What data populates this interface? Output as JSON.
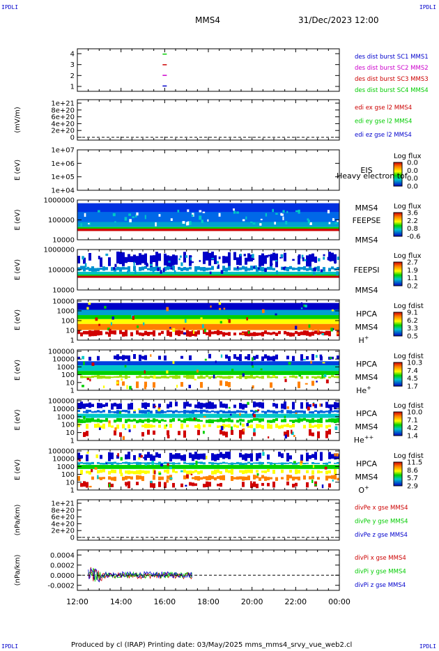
{
  "corner_label": "IPDLI",
  "header": {
    "spacecraft": "MMS4",
    "datetime": "31/Dec/2023 12:00"
  },
  "footer": "Produced by cl (IRAP)   Printing date: 03/May/2025   mms_mms4_srvy_vue_web2.cl",
  "chart_data": [
    {
      "type": "line",
      "panel": "burst",
      "yticks": [
        "1",
        "2",
        "3",
        "4"
      ],
      "ylim": [
        0.5,
        4.5
      ],
      "marks": [
        {
          "x": "16:00",
          "y": 4,
          "color": "#00cc00"
        },
        {
          "x": "16:00",
          "y": 3,
          "color": "#cc0000"
        },
        {
          "x": "16:00",
          "y": 2,
          "color": "#cc00cc"
        },
        {
          "x": "16:00",
          "y": 1,
          "color": "#0000cc"
        }
      ],
      "legend": [
        {
          "text": "des dist burst SC1 MMS1",
          "color": "#0000cc"
        },
        {
          "text": "des dist burst SC2 MMS2",
          "color": "#cc00cc"
        },
        {
          "text": "des dist burst SC3 MMS3",
          "color": "#cc0000"
        },
        {
          "text": "des dist burst SC4 MMS4",
          "color": "#00cc00"
        }
      ]
    },
    {
      "type": "line",
      "panel": "edi",
      "ylabel": "(mV/m)",
      "yticks": [
        "0",
        "2e+20",
        "4e+20",
        "6e+20",
        "8e+20",
        "1e+21"
      ],
      "ylim": [
        0,
        1e+21
      ],
      "dashed_zero": true,
      "legend": [
        {
          "text": "edi ex gse l2 MMS4",
          "color": "#cc0000"
        },
        {
          "text": "edi ey gse l2 MMS4",
          "color": "#00cc00"
        },
        {
          "text": "edi ez gse l2 MMS4",
          "color": "#0000cc"
        }
      ]
    },
    {
      "type": "heatmap",
      "panel": "eis",
      "ylabel": "E (eV)",
      "yticks": [
        "1e+04",
        "1e+05",
        "1e+06",
        "1e+07"
      ],
      "instrument": [
        "EIS",
        "MMS4"
      ],
      "overlay_text": "Heavy electron tof",
      "colorbar": {
        "title": "Log flux",
        "ticks": [
          "0.0",
          "0.0",
          "0.0",
          "0.0"
        ]
      }
    },
    {
      "type": "heatmap",
      "panel": "feepse",
      "ylabel": "E (eV)",
      "yticks": [
        "10000",
        "100000",
        "1000000"
      ],
      "instrument": [
        "FEEPSE",
        "MMS4"
      ],
      "colorbar": {
        "title": "Log flux",
        "ticks": [
          "3.6",
          "2.2",
          "0.8",
          "-0.6"
        ]
      }
    },
    {
      "type": "heatmap",
      "panel": "feepsi",
      "ylabel": "E (eV)",
      "yticks": [
        "10000",
        "100000",
        "1000000"
      ],
      "instrument": [
        "FEEPSI",
        "MMS4"
      ],
      "colorbar": {
        "title": "Log flux",
        "ticks": [
          "2.7",
          "1.9",
          "1.1",
          "0.2"
        ]
      }
    },
    {
      "type": "heatmap",
      "panel": "hpca_h",
      "ylabel": "E (eV)",
      "yticks": [
        "1",
        "10",
        "100",
        "1000",
        "10000"
      ],
      "instrument": [
        "HPCA",
        "MMS4"
      ],
      "species": "H",
      "charge": "+",
      "colorbar": {
        "title": "Log fdist",
        "ticks": [
          "9.1",
          "6.2",
          "3.3",
          "0.5"
        ]
      }
    },
    {
      "type": "heatmap",
      "panel": "hpca_he",
      "ylabel": "E (eV)",
      "yticks": [
        "1",
        "10",
        "100",
        "1000",
        "10000",
        "100000"
      ],
      "instrument": [
        "HPCA",
        "MMS4"
      ],
      "species": "He",
      "charge": "+",
      "colorbar": {
        "title": "Log fdist",
        "ticks": [
          "10.3",
          "7.4",
          "4.5",
          "1.7"
        ]
      }
    },
    {
      "type": "heatmap",
      "panel": "hpca_he2",
      "ylabel": "E (eV)",
      "yticks": [
        "1",
        "10",
        "100",
        "1000",
        "10000",
        "100000"
      ],
      "instrument": [
        "HPCA",
        "MMS4"
      ],
      "species": "He",
      "charge": "++",
      "colorbar": {
        "title": "Log fdist",
        "ticks": [
          "10.0",
          "7.1",
          "4.2",
          "1.4"
        ]
      }
    },
    {
      "type": "heatmap",
      "panel": "hpca_o",
      "ylabel": "E (eV)",
      "yticks": [
        "1",
        "10",
        "100",
        "1000",
        "10000",
        "100000"
      ],
      "instrument": [
        "HPCA",
        "MMS4"
      ],
      "species": "O",
      "charge": "+",
      "colorbar": {
        "title": "Log fdist",
        "ticks": [
          "11.5",
          "8.6",
          "5.7",
          "2.9"
        ]
      }
    },
    {
      "type": "line",
      "panel": "divpe",
      "ylabel": "(nPa/km)",
      "yticks": [
        "0",
        "2e+20",
        "4e+20",
        "6e+20",
        "8e+20",
        "1e+21"
      ],
      "ylim": [
        0,
        1e+21
      ],
      "dashed_zero": true,
      "legend": [
        {
          "text": "divPe x gse MMS4",
          "color": "#cc0000"
        },
        {
          "text": "divPe y gse MMS4",
          "color": "#00cc00"
        },
        {
          "text": "divPe z gse MMS4",
          "color": "#0000cc"
        }
      ]
    },
    {
      "type": "line",
      "panel": "divpi",
      "ylabel": "(nPa/km)",
      "yticks": [
        "-0.0002",
        "0.0000",
        "0.0002",
        "0.0004"
      ],
      "ylim": [
        -0.0003,
        0.0005
      ],
      "dashed_zero": true,
      "data_extent": [
        "12:30",
        "17:15"
      ],
      "legend": [
        {
          "text": "divPi x gse MMS4",
          "color": "#cc0000"
        },
        {
          "text": "divPi y gse MMS4",
          "color": "#00cc00"
        },
        {
          "text": "divPi z gse MMS4",
          "color": "#0000cc"
        }
      ]
    }
  ],
  "xaxis": {
    "ticks": [
      "12:00",
      "14:00",
      "16:00",
      "18:00",
      "20:00",
      "22:00",
      "00:00"
    ]
  }
}
